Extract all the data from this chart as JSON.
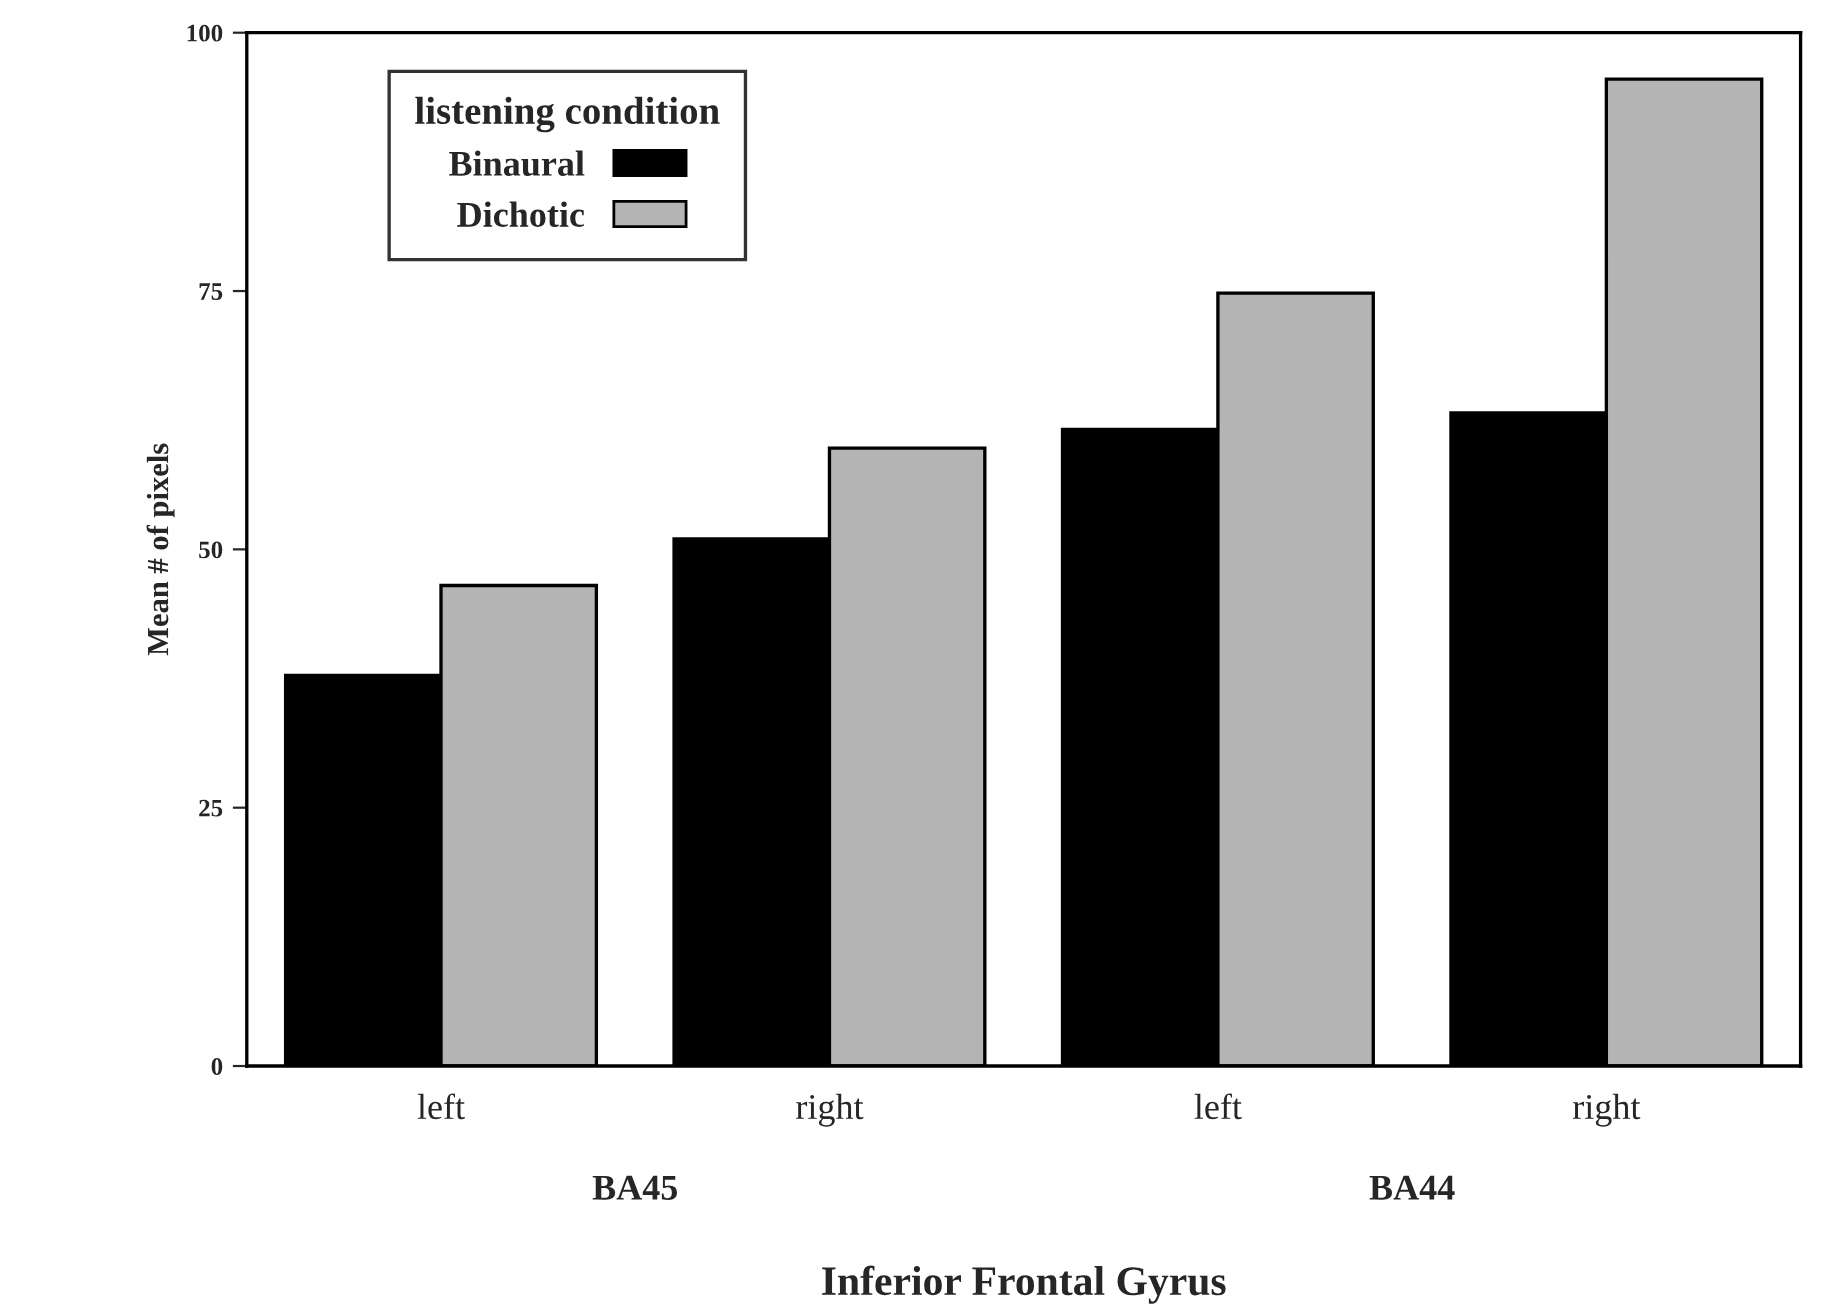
{
  "chart_data": {
    "type": "bar",
    "categories": [
      "left",
      "right",
      "left",
      "right"
    ],
    "series": [
      {
        "name": "Binaural",
        "color": "#000000",
        "values": [
          37.8,
          51,
          61.6,
          63.2
        ]
      },
      {
        "name": "Dichotic",
        "color": "#b4b4b4",
        "values": [
          46.5,
          59.8,
          74.8,
          95.5
        ]
      }
    ],
    "ylabel": "Mean # of pixels",
    "xlabel": "Inferior Frontal Gyrus",
    "legend_title": "listening condition",
    "legend": "top left",
    "annotations": [
      "BA45",
      "BA44"
    ],
    "ylim": [
      0,
      100
    ],
    "yticks": [
      0,
      25,
      50,
      75,
      100
    ],
    "grid": false
  }
}
